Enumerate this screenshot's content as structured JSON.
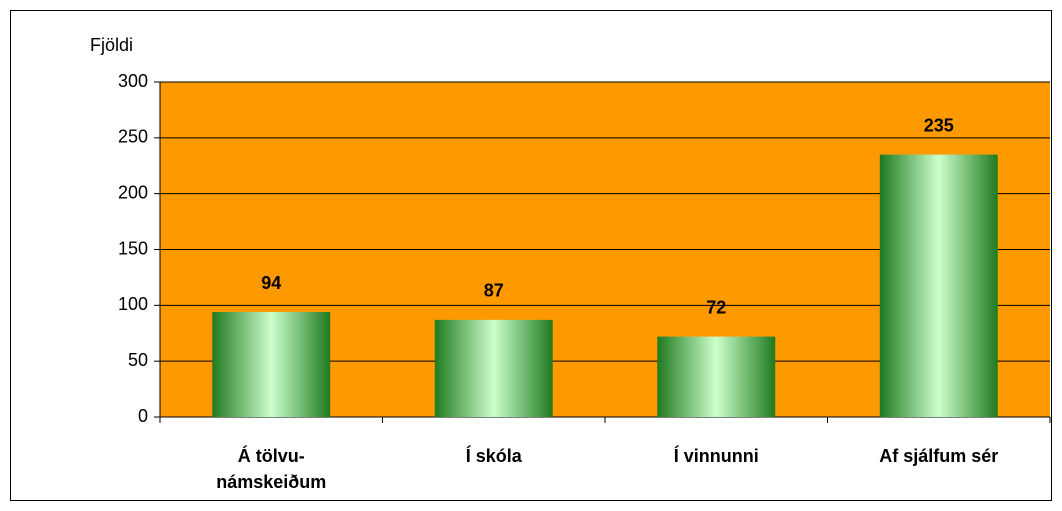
{
  "chart_data": {
    "type": "bar",
    "y_axis_label": "Fjöldi",
    "categories": [
      "Á tölvu-\nnámskeiðum",
      "Í skóla",
      "Í vinnunni",
      "Af sjálfum sér"
    ],
    "values": [
      94,
      87,
      72,
      235
    ],
    "ylim": [
      0,
      300
    ],
    "yticks": [
      0,
      50,
      100,
      150,
      200,
      250,
      300
    ],
    "grid": true,
    "plot_background": "#ff9900"
  }
}
